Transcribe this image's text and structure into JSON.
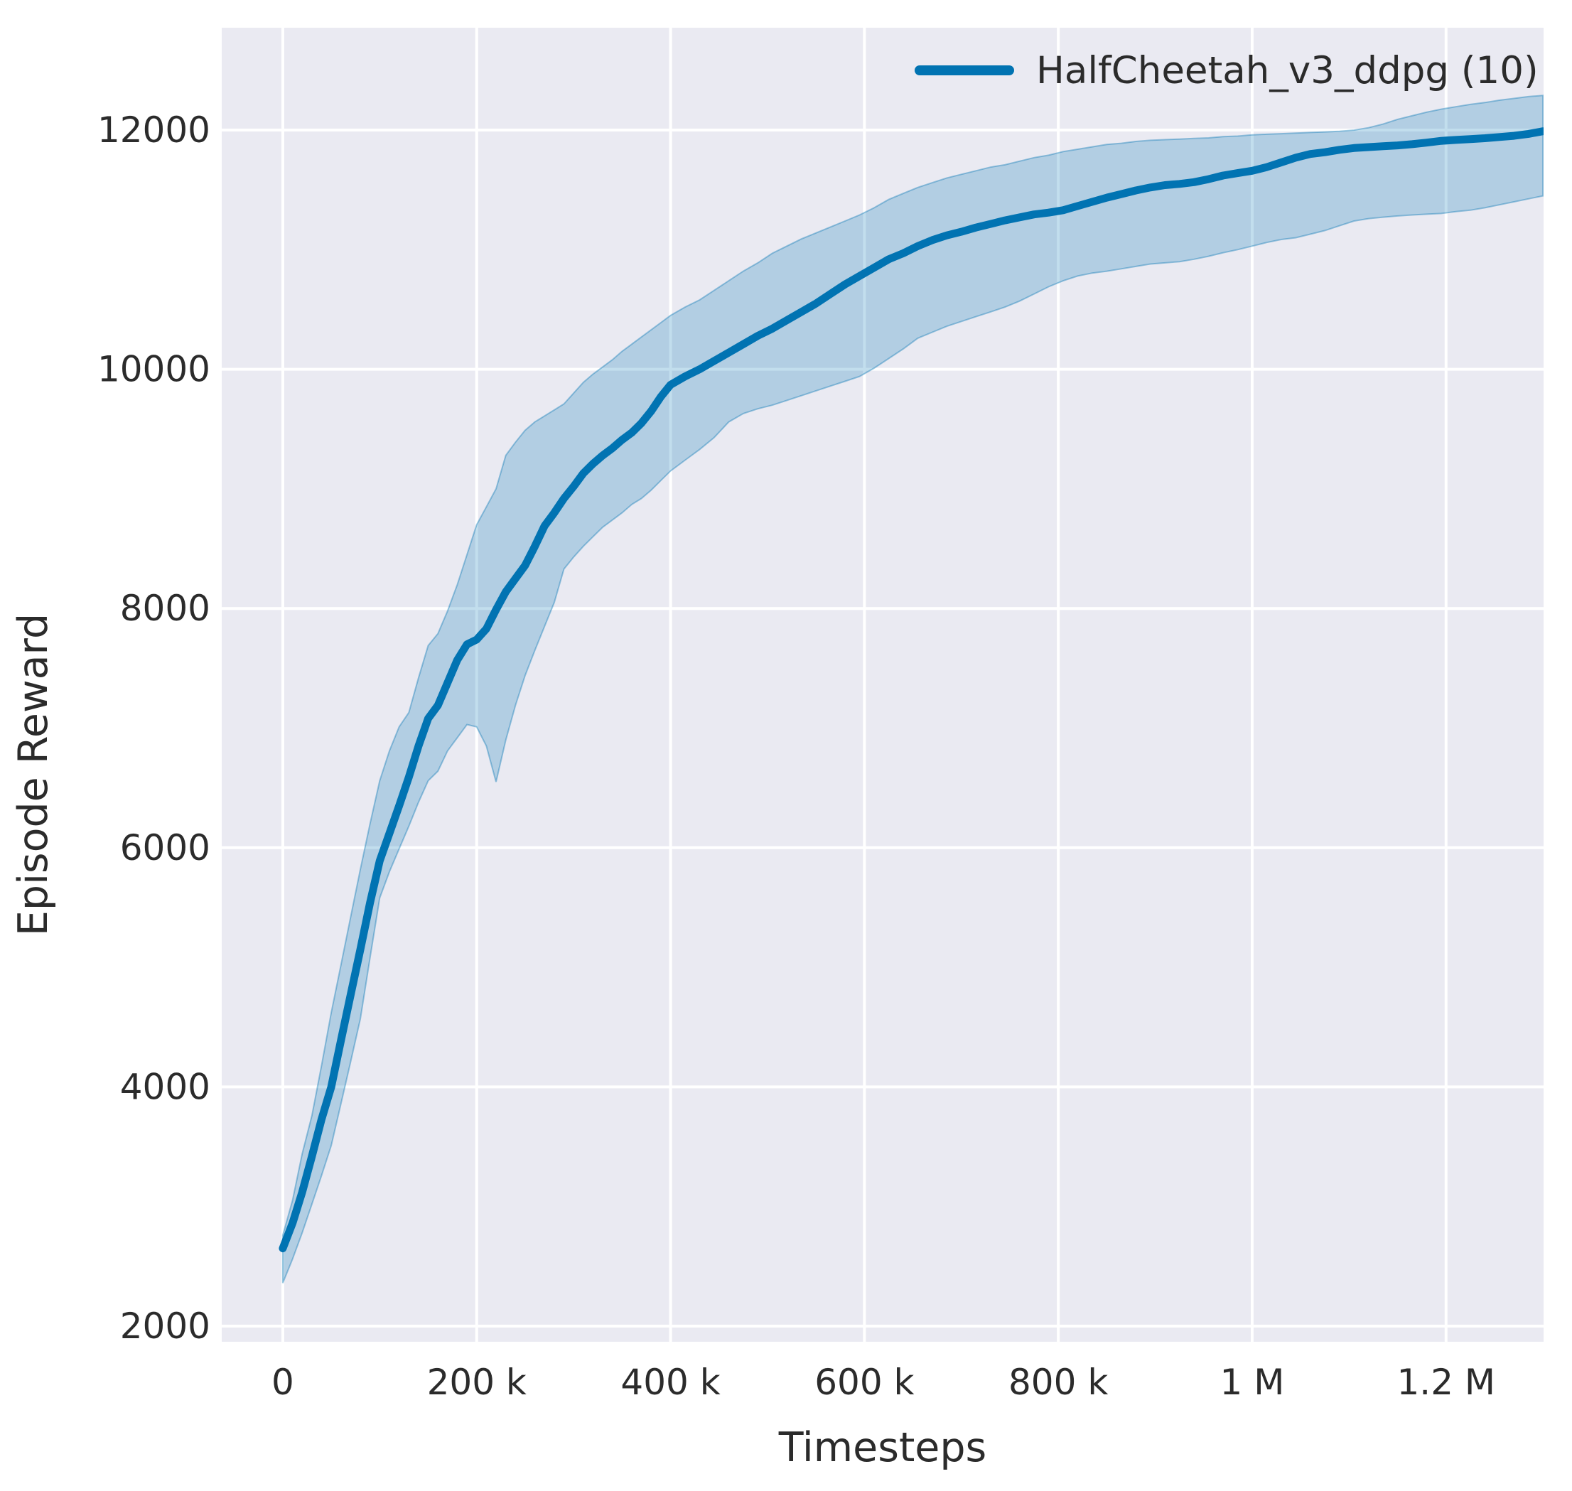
{
  "figure": {
    "background": "#ffffff",
    "plot_background": "#eaeaf2",
    "grid_color": "#ffffff",
    "text_color": "#2b2b2b"
  },
  "legend": {
    "label": "HalfCheetah_v3_ddpg (10)",
    "line_color": "#0173b2"
  },
  "axes": {
    "x_label": "Timesteps",
    "y_label": "Episode Reward",
    "x_ticks": [
      0,
      200000,
      400000,
      600000,
      800000,
      1000000,
      1200000
    ],
    "x_tick_labels": [
      "0",
      "200 k",
      "400 k",
      "600 k",
      "800 k",
      "1 M",
      "1.2 M"
    ],
    "y_ticks": [
      2000,
      4000,
      6000,
      8000,
      10000,
      12000
    ],
    "y_tick_labels": [
      "2000",
      "4000",
      "6000",
      "8000",
      "10000",
      "12000"
    ],
    "xlim": [
      -63000,
      1300600
    ],
    "ylim": [
      1869,
      12856
    ],
    "grid": true
  },
  "chart_data": {
    "type": "line",
    "title": "",
    "xlabel": "Timesteps",
    "ylabel": "Episode Reward",
    "legend_position": "upper right",
    "line_color": "#0173b2",
    "band_fill_alpha": 0.24,
    "series": [
      {
        "name": "HalfCheetah_v3_ddpg (10)",
        "x": [
          0,
          10000,
          20000,
          30000,
          40000,
          50000,
          60000,
          70000,
          80000,
          90000,
          100000,
          110000,
          120000,
          130000,
          140000,
          150000,
          160000,
          170000,
          180000,
          190000,
          200000,
          210000,
          220000,
          230000,
          240000,
          250000,
          260000,
          270000,
          280000,
          290000,
          300000,
          310000,
          320000,
          330000,
          340000,
          350000,
          360000,
          370000,
          380000,
          390000,
          400000,
          415000,
          430000,
          445000,
          460000,
          475000,
          490000,
          505000,
          520000,
          535000,
          550000,
          565000,
          580000,
          595000,
          610000,
          625000,
          640000,
          655000,
          670000,
          685000,
          700000,
          715000,
          730000,
          745000,
          760000,
          775000,
          790000,
          805000,
          820000,
          835000,
          850000,
          865000,
          880000,
          895000,
          910000,
          925000,
          940000,
          955000,
          970000,
          985000,
          1000000,
          1015000,
          1030000,
          1045000,
          1060000,
          1075000,
          1090000,
          1105000,
          1120000,
          1135000,
          1150000,
          1165000,
          1180000,
          1195000,
          1210000,
          1225000,
          1240000,
          1255000,
          1270000,
          1285000,
          1300000
        ],
        "mean": [
          2650,
          2860,
          3120,
          3420,
          3730,
          4000,
          4390,
          4770,
          5150,
          5540,
          5890,
          6120,
          6350,
          6590,
          6850,
          7080,
          7190,
          7380,
          7570,
          7700,
          7740,
          7830,
          7990,
          8140,
          8250,
          8360,
          8520,
          8690,
          8800,
          8920,
          9020,
          9130,
          9210,
          9280,
          9340,
          9410,
          9470,
          9550,
          9650,
          9770,
          9870,
          9940,
          10000,
          10070,
          10140,
          10210,
          10280,
          10340,
          10410,
          10480,
          10550,
          10630,
          10710,
          10780,
          10850,
          10920,
          10970,
          11030,
          11080,
          11120,
          11150,
          11185,
          11215,
          11245,
          11270,
          11295,
          11310,
          11330,
          11365,
          11400,
          11435,
          11465,
          11495,
          11520,
          11540,
          11550,
          11565,
          11590,
          11620,
          11640,
          11660,
          11690,
          11730,
          11770,
          11800,
          11815,
          11835,
          11850,
          11858,
          11865,
          11872,
          11882,
          11895,
          11910,
          11918,
          11925,
          11932,
          11942,
          11952,
          11968,
          11990
        ],
        "upper": [
          2760,
          3050,
          3440,
          3760,
          4180,
          4620,
          5020,
          5420,
          5820,
          6200,
          6560,
          6810,
          7010,
          7130,
          7420,
          7690,
          7790,
          7980,
          8200,
          8450,
          8700,
          8850,
          9000,
          9280,
          9390,
          9490,
          9560,
          9610,
          9660,
          9710,
          9800,
          9890,
          9960,
          10020,
          10080,
          10150,
          10210,
          10270,
          10330,
          10390,
          10450,
          10520,
          10580,
          10660,
          10740,
          10820,
          10890,
          10970,
          11030,
          11090,
          11140,
          11190,
          11240,
          11290,
          11350,
          11420,
          11470,
          11520,
          11560,
          11600,
          11630,
          11660,
          11690,
          11710,
          11740,
          11770,
          11790,
          11820,
          11840,
          11860,
          11880,
          11890,
          11905,
          11915,
          11920,
          11925,
          11930,
          11935,
          11945,
          11950,
          11960,
          11965,
          11970,
          11975,
          11980,
          11985,
          11990,
          12000,
          12020,
          12050,
          12090,
          12120,
          12150,
          12175,
          12195,
          12215,
          12230,
          12250,
          12265,
          12280,
          12290
        ],
        "lower": [
          2360,
          2560,
          2780,
          3020,
          3260,
          3510,
          3860,
          4210,
          4570,
          5080,
          5580,
          5800,
          5990,
          6180,
          6380,
          6560,
          6640,
          6810,
          6920,
          7030,
          7010,
          6850,
          6550,
          6900,
          7190,
          7440,
          7650,
          7850,
          8050,
          8330,
          8430,
          8520,
          8600,
          8680,
          8740,
          8800,
          8870,
          8920,
          8990,
          9070,
          9150,
          9240,
          9330,
          9430,
          9560,
          9630,
          9670,
          9700,
          9740,
          9780,
          9820,
          9860,
          9900,
          9940,
          10010,
          10090,
          10170,
          10260,
          10310,
          10360,
          10400,
          10440,
          10480,
          10520,
          10570,
          10630,
          10690,
          10740,
          10780,
          10805,
          10820,
          10840,
          10860,
          10880,
          10890,
          10900,
          10920,
          10945,
          10975,
          11000,
          11030,
          11060,
          11085,
          11100,
          11130,
          11160,
          11200,
          11240,
          11260,
          11272,
          11282,
          11290,
          11297,
          11303,
          11318,
          11330,
          11350,
          11375,
          11400,
          11425,
          11450
        ]
      }
    ]
  }
}
